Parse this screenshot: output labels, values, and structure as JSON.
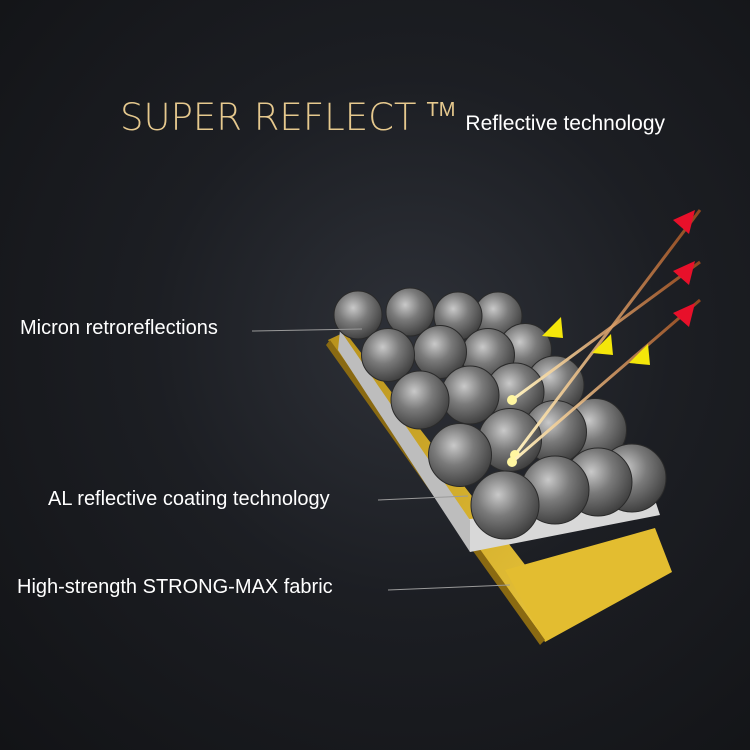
{
  "header": {
    "brand": "SUPER REFLECT",
    "trademark": "TM",
    "subtitle": "Reflective technology"
  },
  "labels": {
    "micron": "Micron retroreflections",
    "coating": "AL reflective coating technology",
    "fabric": "High-strength STRONG-MAX fabric"
  },
  "colors": {
    "brand_gold": "#e6c98e",
    "fabric_gold": "#d8b02a",
    "incoming_arrow": "#e8102a",
    "reflected_arrow": "#f4e60a"
  }
}
